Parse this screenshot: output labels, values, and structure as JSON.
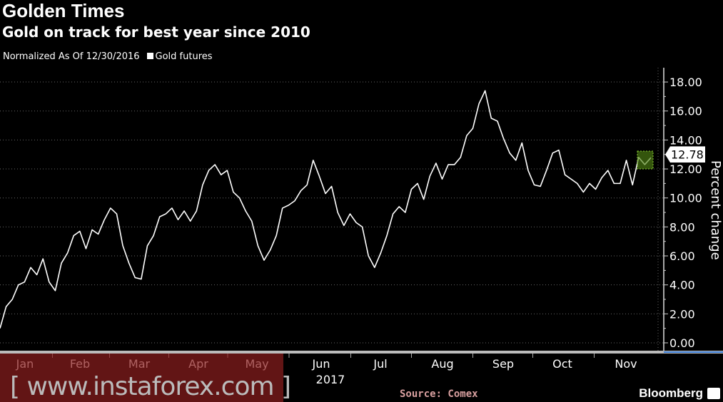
{
  "header": {
    "title": "Golden Times",
    "subtitle": "Gold on track for best year since 2010"
  },
  "legend": {
    "note": "Normalized As Of 12/30/2016",
    "series_label": "Gold futures"
  },
  "footer": {
    "source": "Source: Comex",
    "brand": "Bloomberg",
    "watermark": "[ www.instaforex.com ]"
  },
  "colors": {
    "background": "#000000",
    "line": "#ffffff",
    "marker": "#4a7a1a",
    "watermark": "#8c1e1e"
  },
  "chart_data": {
    "type": "line",
    "title": "Golden Times",
    "subtitle": "Gold on track for best year since 2010",
    "ylabel": "Percent change",
    "xlabel": "",
    "year_label": "2017",
    "ylim": [
      -0.5,
      18.8
    ],
    "yticks": [
      "0.00",
      "2.00",
      "4.00",
      "6.00",
      "8.00",
      "10.00",
      "12.00",
      "14.00",
      "16.00",
      "18.00"
    ],
    "xticks": [
      "Jan",
      "Feb",
      "Mar",
      "Apr",
      "May",
      "Jun",
      "Jul",
      "Aug",
      "Sep",
      "Oct",
      "Nov"
    ],
    "grid": true,
    "legend_position": "top-left",
    "last_value_label": "12.78",
    "series": [
      {
        "name": "Gold futures",
        "values": [
          1.0,
          2.5,
          3.0,
          4.0,
          4.2,
          5.2,
          4.7,
          5.8,
          4.2,
          3.6,
          5.5,
          6.2,
          7.4,
          7.7,
          6.5,
          7.8,
          7.5,
          8.5,
          9.3,
          8.9,
          6.7,
          5.5,
          4.5,
          4.4,
          6.7,
          7.4,
          8.7,
          8.9,
          9.3,
          8.5,
          9.1,
          8.4,
          9.1,
          10.9,
          11.9,
          12.3,
          11.6,
          11.9,
          10.4,
          10.0,
          9.1,
          8.4,
          6.7,
          5.7,
          6.4,
          7.4,
          9.3,
          9.5,
          9.8,
          10.5,
          10.9,
          12.6,
          11.5,
          10.3,
          10.8,
          9.0,
          8.1,
          8.9,
          8.3,
          8.0,
          6.0,
          5.2,
          6.2,
          7.4,
          8.9,
          9.4,
          9.0,
          10.6,
          11.0,
          9.9,
          11.5,
          12.4,
          11.3,
          12.3,
          12.3,
          12.8,
          14.3,
          14.8,
          16.5,
          17.4,
          15.5,
          15.3,
          14.1,
          13.1,
          12.6,
          13.8,
          11.9,
          10.9,
          10.8,
          11.9,
          13.1,
          13.3,
          11.6,
          11.3,
          11.0,
          10.4,
          11.0,
          10.6,
          11.4,
          11.9,
          11.0,
          11.0,
          12.6,
          10.9,
          12.8,
          12.3,
          12.78
        ]
      }
    ]
  }
}
